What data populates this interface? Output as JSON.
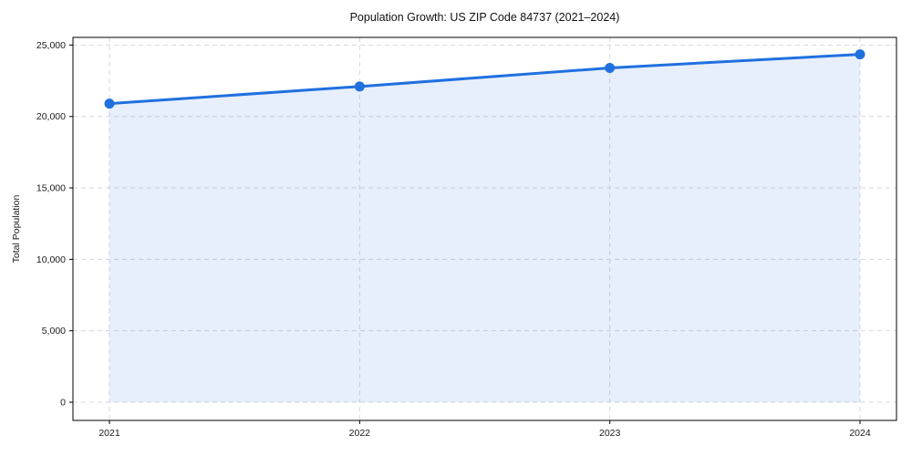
{
  "chart_data": {
    "type": "line",
    "title": "Population Growth: US ZIP Code 84737 (2021–2024)",
    "xlabel": "",
    "ylabel": "Total Population",
    "categories": [
      "2021",
      "2022",
      "2023",
      "2024"
    ],
    "series": [
      {
        "name": "Total Population",
        "values": [
          20900,
          22100,
          23400,
          24350
        ]
      }
    ],
    "ylim": [
      0,
      25000
    ],
    "yticks": [
      0,
      5000,
      10000,
      15000,
      20000,
      25000
    ],
    "ytick_labels": [
      "0",
      "5,000",
      "10,000",
      "15,000",
      "20,000",
      "25,000"
    ],
    "xtick_labels": [
      "2021",
      "2022",
      "2023",
      "2024"
    ],
    "grid": true,
    "grid_style": "dashed",
    "legend": false,
    "marker": "circle",
    "area_fill": true,
    "colors": {
      "line": "#2070e0",
      "marker": "#2070e0",
      "area": "rgba(32,112,224,0.11)",
      "grid": "#d4d7dd",
      "spine": "#000000",
      "text": "#1a1a1a",
      "background": "#ffffff"
    }
  }
}
